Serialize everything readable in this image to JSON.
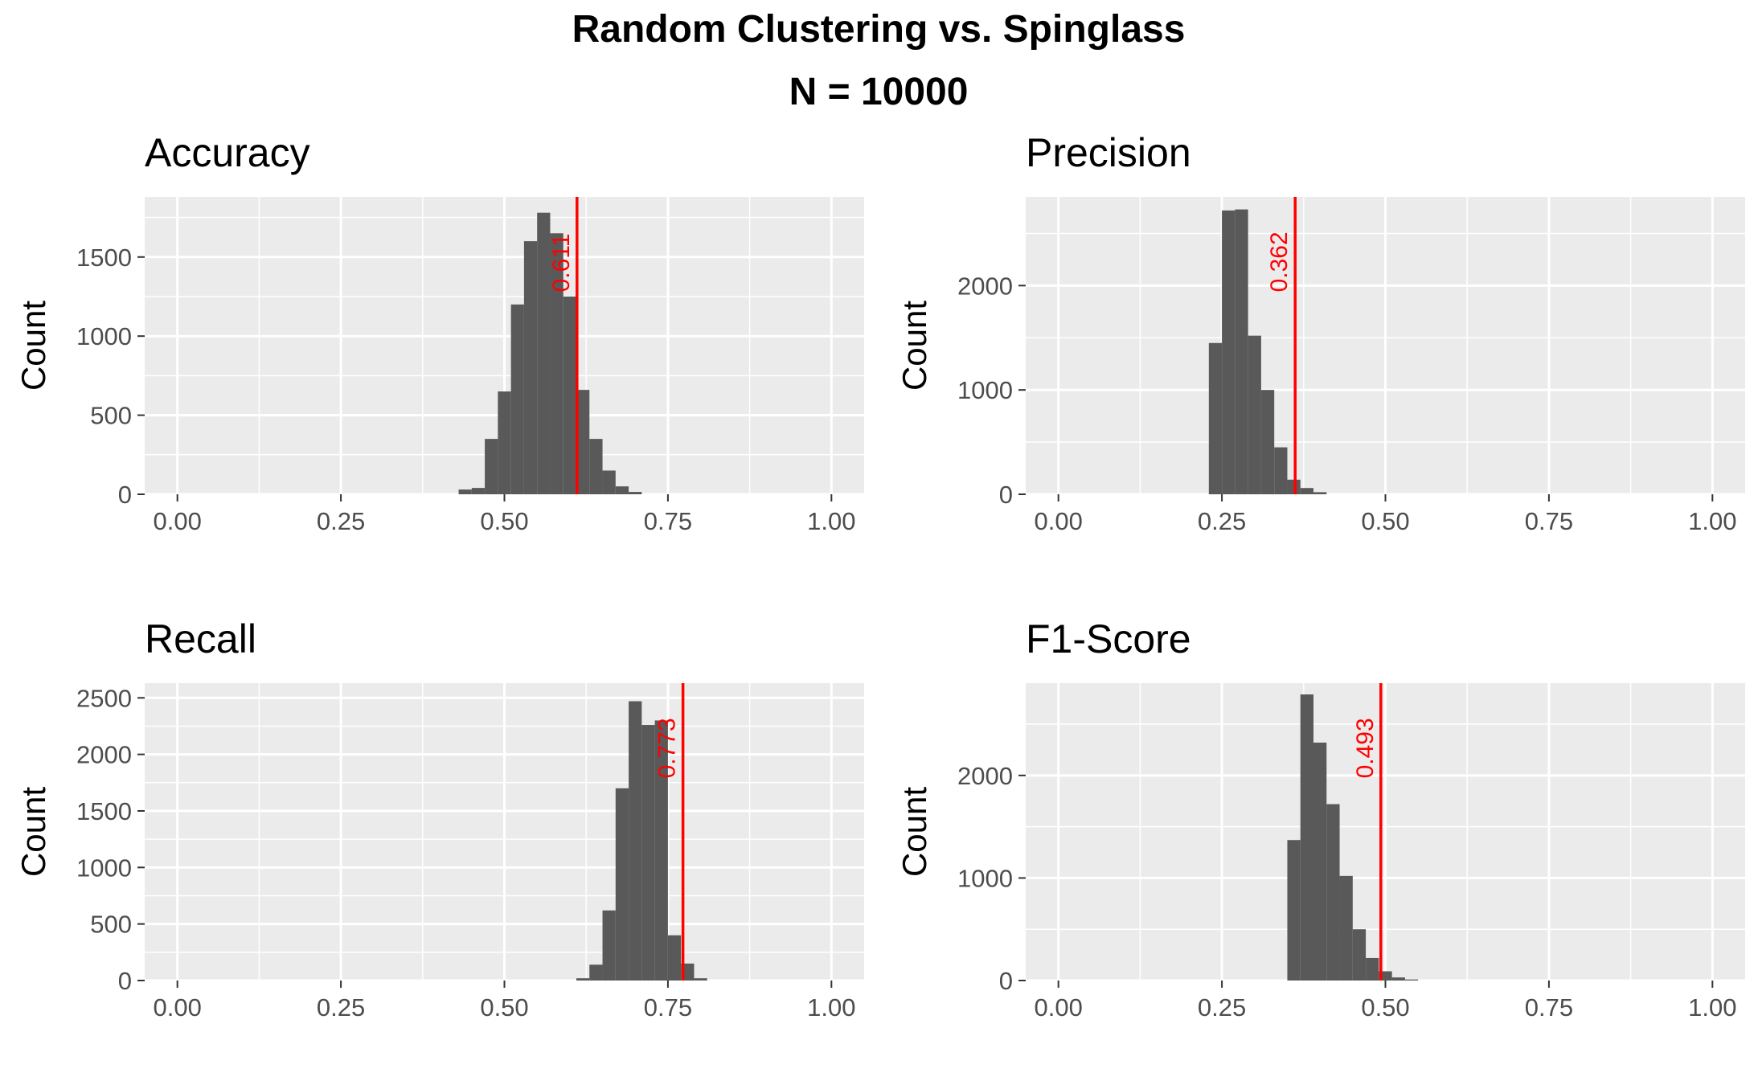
{
  "title": "Random Clustering vs. Spinglass",
  "subtitle": "N = 10000",
  "colors": {
    "panel_bg": "#ebebeb",
    "grid": "#ffffff",
    "bar": "#595959",
    "marker": "#ff0000",
    "tick_text": "#4d4d4d"
  },
  "chart_data": [
    {
      "type": "bar",
      "title": "Accuracy",
      "ylabel": "Count",
      "xlabel": "",
      "xlim": [
        -0.05,
        1.05
      ],
      "ylim": [
        0,
        1880
      ],
      "xticks": [
        0,
        0.25,
        0.5,
        0.75,
        1
      ],
      "xtick_labels": [
        "0.00",
        "0.25",
        "0.50",
        "0.75",
        "1.00"
      ],
      "yticks": [
        0,
        500,
        1000,
        1500
      ],
      "ytick_labels": [
        "0",
        "500",
        "1000",
        "1500"
      ],
      "bin_width": 0.02,
      "bin_starts": [
        0.43,
        0.45,
        0.47,
        0.49,
        0.51,
        0.53,
        0.55,
        0.57,
        0.59,
        0.61,
        0.63,
        0.65,
        0.67,
        0.69
      ],
      "counts": [
        30,
        40,
        350,
        650,
        1200,
        1600,
        1780,
        1650,
        1250,
        660,
        350,
        150,
        50,
        15
      ],
      "marker_value": 0.611,
      "marker_label": "0.611"
    },
    {
      "type": "bar",
      "title": "Precision",
      "ylabel": "Count",
      "xlabel": "",
      "xlim": [
        -0.05,
        1.05
      ],
      "ylim": [
        0,
        2850
      ],
      "xticks": [
        0,
        0.25,
        0.5,
        0.75,
        1
      ],
      "xtick_labels": [
        "0.00",
        "0.25",
        "0.50",
        "0.75",
        "1.00"
      ],
      "yticks": [
        0,
        1000,
        2000
      ],
      "ytick_labels": [
        "0",
        "1000",
        "2000"
      ],
      "bin_width": 0.02,
      "bin_starts": [
        0.23,
        0.25,
        0.27,
        0.29,
        0.31,
        0.33,
        0.35,
        0.37,
        0.39
      ],
      "counts": [
        1450,
        2720,
        2730,
        1520,
        1000,
        450,
        140,
        60,
        20
      ],
      "marker_value": 0.362,
      "marker_label": "0.362"
    },
    {
      "type": "bar",
      "title": "Recall",
      "ylabel": "Count",
      "xlabel": "",
      "xlim": [
        -0.05,
        1.05
      ],
      "ylim": [
        0,
        2630
      ],
      "xticks": [
        0,
        0.25,
        0.5,
        0.75,
        1
      ],
      "xtick_labels": [
        "0.00",
        "0.25",
        "0.50",
        "0.75",
        "1.00"
      ],
      "yticks": [
        0,
        500,
        1000,
        1500,
        2000,
        2500
      ],
      "ytick_labels": [
        "0",
        "500",
        "1000",
        "1500",
        "2000",
        "2500"
      ],
      "bin_width": 0.02,
      "bin_starts": [
        0.61,
        0.63,
        0.65,
        0.67,
        0.69,
        0.71,
        0.73,
        0.75,
        0.77,
        0.79
      ],
      "counts": [
        20,
        140,
        620,
        1700,
        2470,
        2260,
        2300,
        400,
        150,
        20
      ],
      "marker_value": 0.773,
      "marker_label": "0.773"
    },
    {
      "type": "bar",
      "title": "F1-Score",
      "ylabel": "Count",
      "xlabel": "",
      "xlim": [
        -0.05,
        1.05
      ],
      "ylim": [
        0,
        2900
      ],
      "xticks": [
        0,
        0.25,
        0.5,
        0.75,
        1
      ],
      "xtick_labels": [
        "0.00",
        "0.25",
        "0.50",
        "0.75",
        "1.00"
      ],
      "yticks": [
        0,
        1000,
        2000
      ],
      "ytick_labels": [
        "0",
        "1000",
        "2000"
      ],
      "bin_width": 0.02,
      "bin_starts": [
        0.35,
        0.37,
        0.39,
        0.41,
        0.43,
        0.45,
        0.47,
        0.49,
        0.51,
        0.53
      ],
      "counts": [
        1370,
        2790,
        2320,
        1720,
        1020,
        500,
        220,
        90,
        30,
        10
      ],
      "marker_value": 0.493,
      "marker_label": "0.493"
    }
  ]
}
